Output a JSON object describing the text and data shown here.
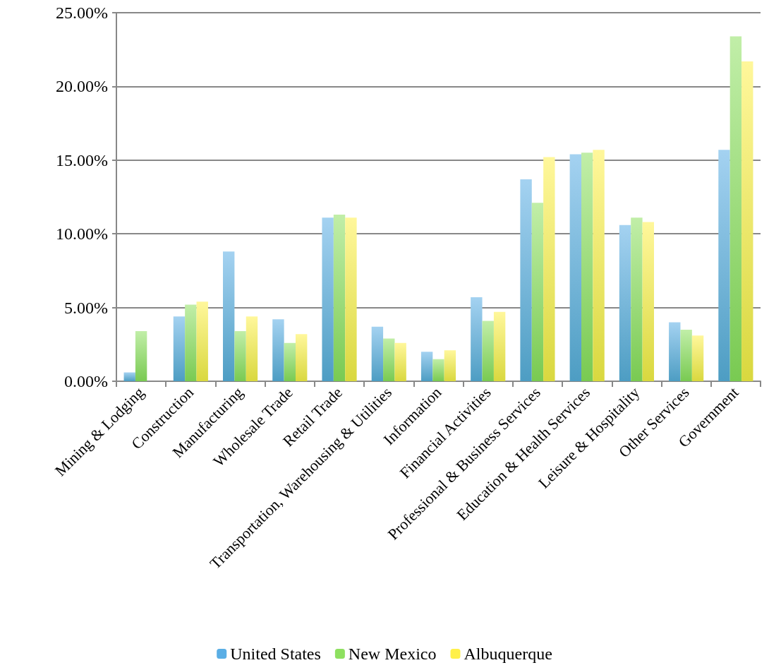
{
  "chart_data": {
    "type": "bar",
    "categories": [
      "Mining & Lodging",
      "Construction",
      "Manufacturing",
      "Wholesale Trade",
      "Retail Trade",
      "Transportation, Warehousing & Utilities",
      "Information",
      "Financial Activities",
      "Professional & Business Services",
      "Education & Health Services",
      "Leisure & Hospitality",
      "Other Services",
      "Government"
    ],
    "series": [
      {
        "name": "United States",
        "color": "#5aaee5",
        "values": [
          0.6,
          4.4,
          8.8,
          4.2,
          11.1,
          3.7,
          2.0,
          5.7,
          13.7,
          15.4,
          10.6,
          4.0,
          15.7
        ]
      },
      {
        "name": "New Mexico",
        "color": "#8ee060",
        "values": [
          3.4,
          5.2,
          3.4,
          2.6,
          11.3,
          2.9,
          1.5,
          4.1,
          12.1,
          15.5,
          11.1,
          3.5,
          23.4
        ]
      },
      {
        "name": "Albuquerque",
        "color": "#fff04a",
        "values": [
          null,
          5.4,
          4.4,
          3.2,
          11.1,
          2.6,
          2.1,
          4.7,
          15.2,
          15.7,
          10.8,
          3.1,
          21.7
        ]
      }
    ],
    "ylim": [
      0,
      25
    ],
    "yticks": [
      {
        "value": 0,
        "label": "0.00%"
      },
      {
        "value": 5,
        "label": "5.00%"
      },
      {
        "value": 10,
        "label": "10.00%"
      },
      {
        "value": 15,
        "label": "15.00%"
      },
      {
        "value": 20,
        "label": "20.00%"
      },
      {
        "value": 25,
        "label": "25.00%"
      }
    ],
    "grid": "y",
    "legend": "bottom"
  }
}
